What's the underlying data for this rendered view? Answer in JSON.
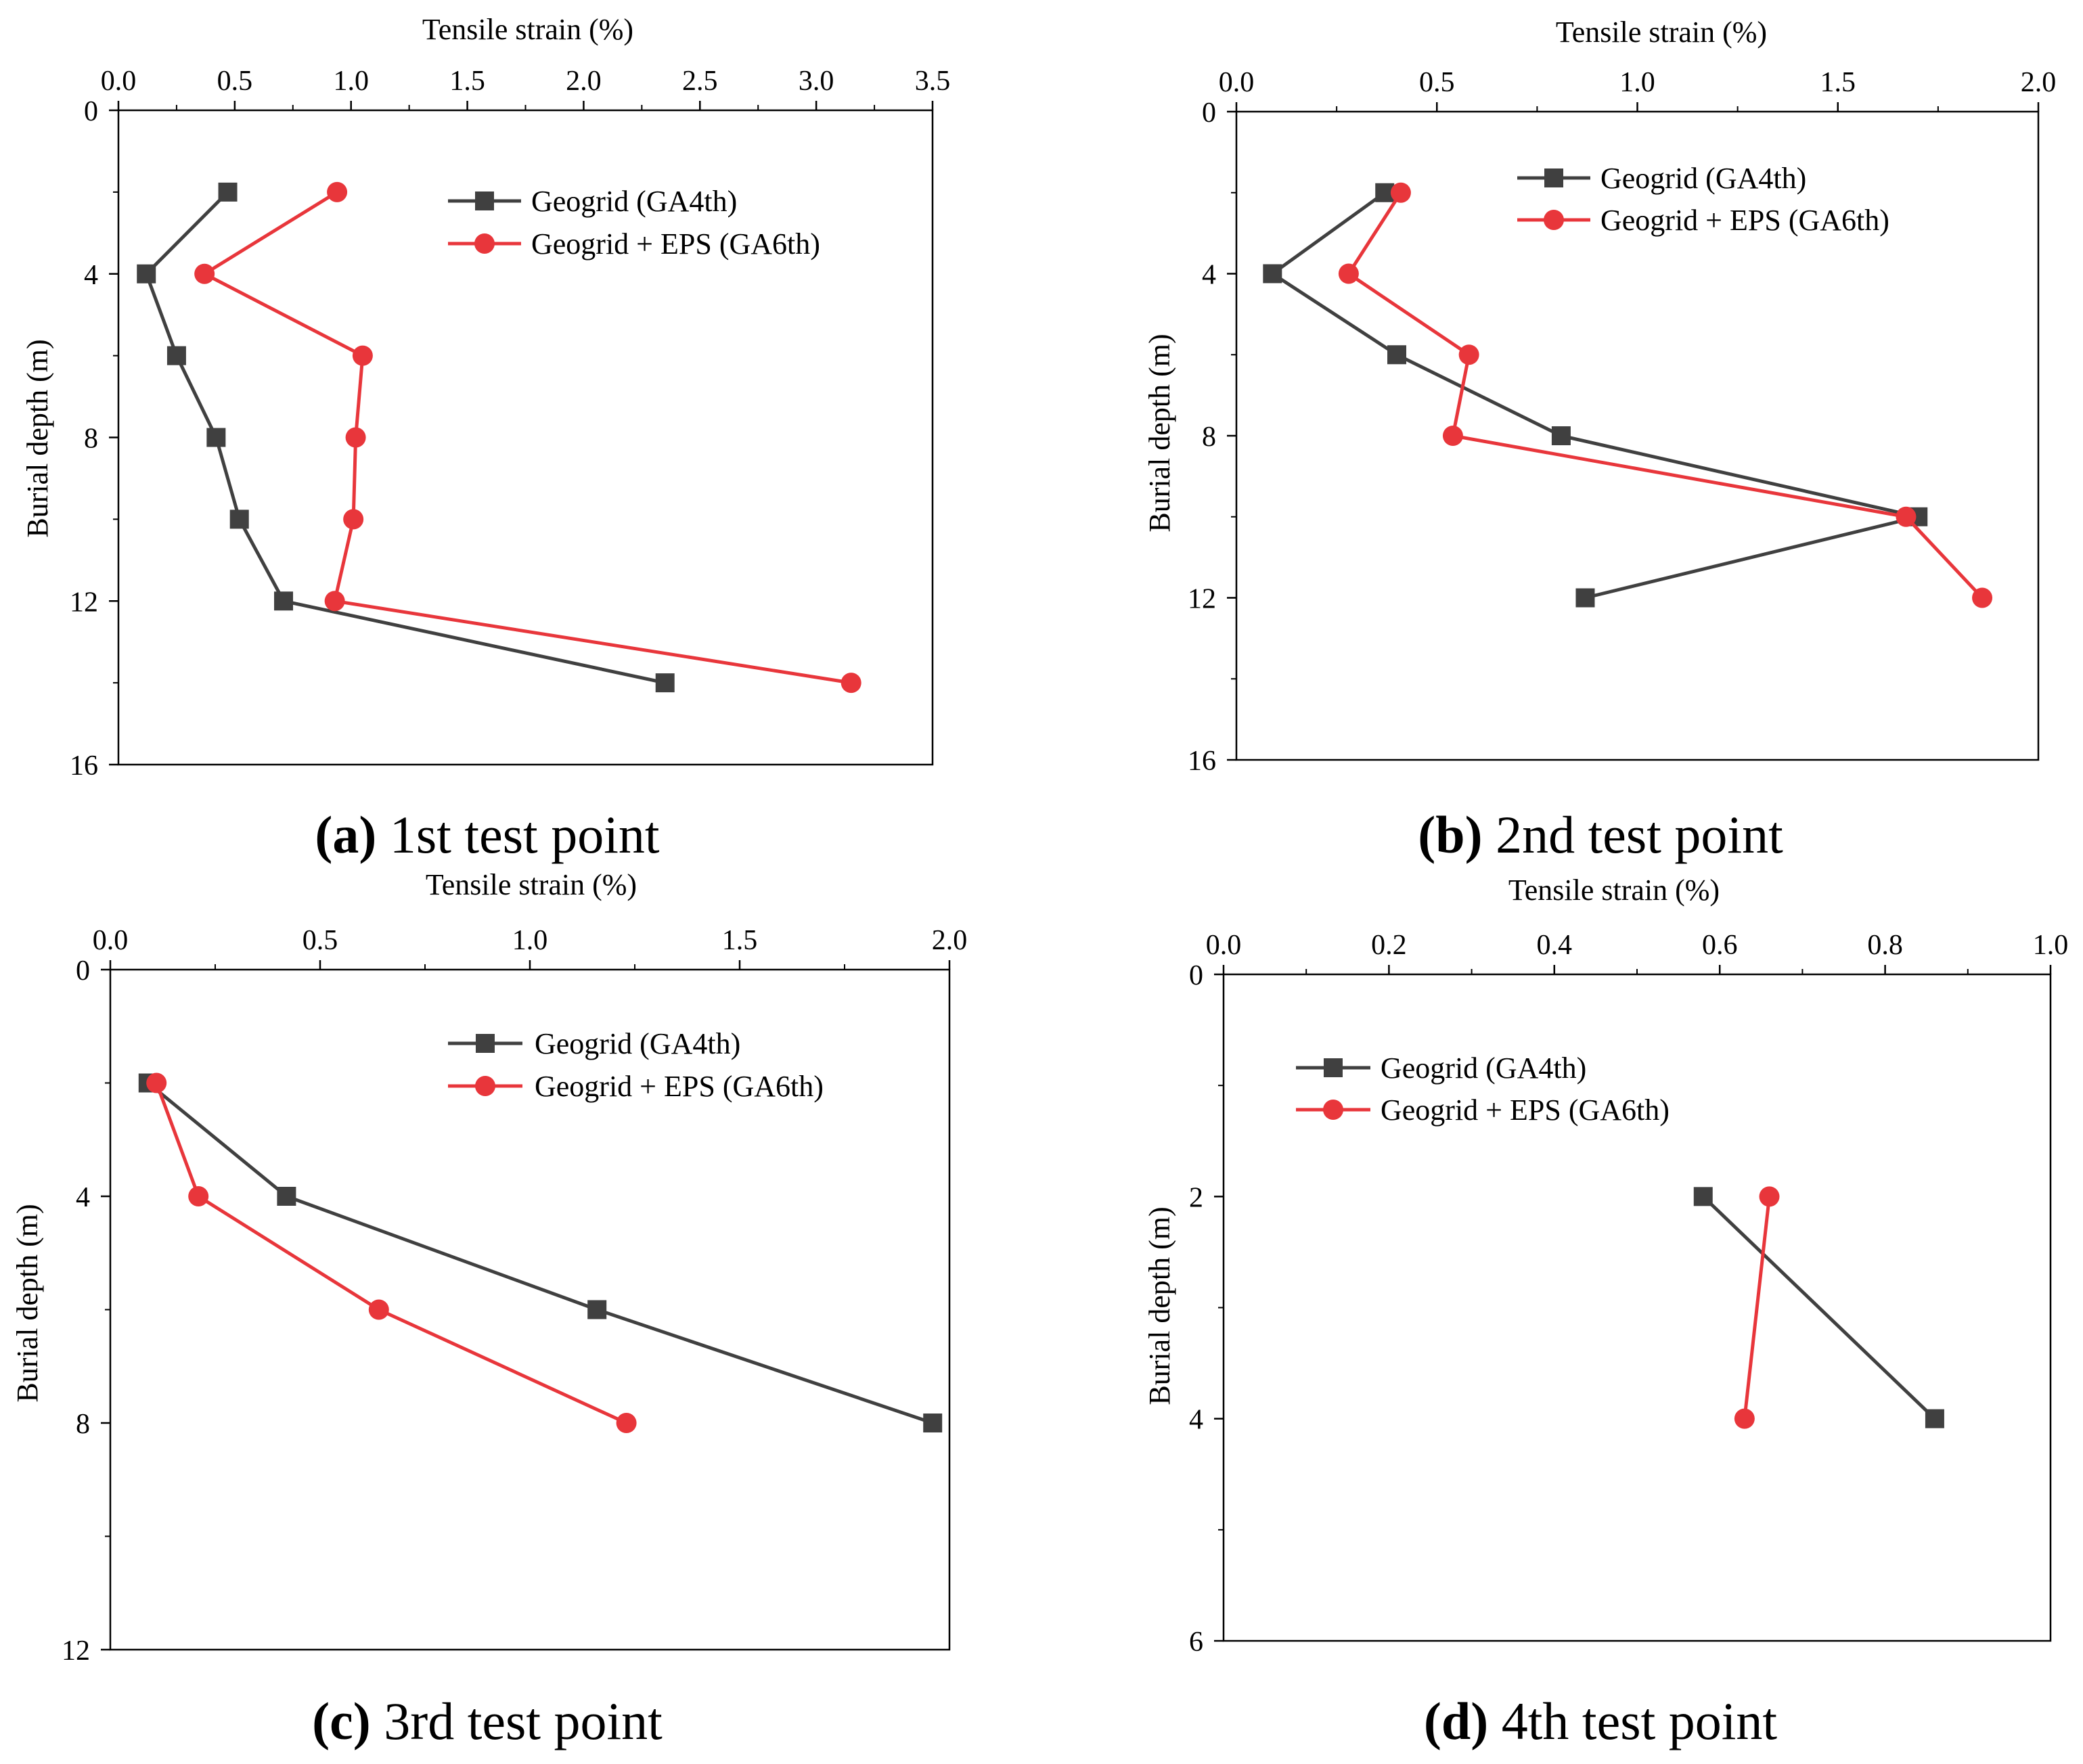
{
  "colors": {
    "series_1": "#404040",
    "series_2": "#e8363b",
    "axis": "#000000"
  },
  "chart_data": [
    {
      "type": "line",
      "caption_letter": "a",
      "caption_text": " 1st test point",
      "xlabel": "Tensile strain (%)",
      "ylabel": "Burial depth (m)",
      "x_position": "top",
      "y_inverted": true,
      "xlim": [
        0,
        3.5
      ],
      "ylim": [
        0,
        16
      ],
      "xticks": [
        0.0,
        0.5,
        1.0,
        1.5,
        2.0,
        2.5,
        3.0,
        3.5
      ],
      "xtick_labels": [
        "0.0",
        "0.5",
        "1.0",
        "1.5",
        "2.0",
        "2.5",
        "3.0",
        "3.5"
      ],
      "yticks": [
        0,
        4,
        8,
        12,
        16
      ],
      "ytick_labels": [
        "0",
        "4",
        "8",
        "12",
        "16"
      ],
      "legend_position": "top-right",
      "series": [
        {
          "name": "Geogrid (GA4th)",
          "marker": "square",
          "color": "#404040",
          "points": [
            [
              0.47,
              2
            ],
            [
              0.12,
              4
            ],
            [
              0.25,
              6
            ],
            [
              0.42,
              8
            ],
            [
              0.52,
              10
            ],
            [
              0.71,
              12
            ],
            [
              2.35,
              14
            ]
          ]
        },
        {
          "name": "Geogrid + EPS (GA6th)",
          "marker": "circle",
          "color": "#e8363b",
          "points": [
            [
              0.94,
              2
            ],
            [
              0.37,
              4
            ],
            [
              1.05,
              6
            ],
            [
              1.02,
              8
            ],
            [
              1.01,
              10
            ],
            [
              0.93,
              12
            ],
            [
              3.15,
              14
            ]
          ]
        }
      ]
    },
    {
      "type": "line",
      "caption_letter": "b",
      "caption_text": " 2nd test point",
      "xlabel": "Tensile strain (%)",
      "ylabel": "Burial depth (m)",
      "x_position": "top",
      "y_inverted": true,
      "xlim": [
        0,
        2.0
      ],
      "ylim": [
        0,
        16
      ],
      "xticks": [
        0.0,
        0.5,
        1.0,
        1.5,
        2.0
      ],
      "xtick_labels": [
        "0.0",
        "0.5",
        "1.0",
        "1.5",
        "2.0"
      ],
      "yticks": [
        0,
        4,
        8,
        12,
        16
      ],
      "ytick_labels": [
        "0",
        "4",
        "8",
        "12",
        "16"
      ],
      "legend_position": "top-right",
      "series": [
        {
          "name": "Geogrid (GA4th)",
          "marker": "square",
          "color": "#404040",
          "points": [
            [
              0.37,
              2
            ],
            [
              0.09,
              4
            ],
            [
              0.4,
              6
            ],
            [
              0.81,
              8
            ],
            [
              1.7,
              10
            ],
            [
              0.87,
              12
            ]
          ]
        },
        {
          "name": "Geogrid + EPS (GA6th)",
          "marker": "circle",
          "color": "#e8363b",
          "points": [
            [
              0.41,
              2
            ],
            [
              0.28,
              4
            ],
            [
              0.58,
              6
            ],
            [
              0.54,
              8
            ],
            [
              1.67,
              10
            ],
            [
              1.86,
              12
            ]
          ]
        }
      ]
    },
    {
      "type": "line",
      "caption_letter": "c",
      "caption_text": " 3rd test point",
      "xlabel": "Tensile strain (%)",
      "ylabel": "Burial depth (m)",
      "x_position": "top",
      "y_inverted": true,
      "xlim": [
        0,
        2.0
      ],
      "ylim": [
        0,
        12
      ],
      "xticks": [
        0.0,
        0.5,
        1.0,
        1.5,
        2.0
      ],
      "xtick_labels": [
        "0.0",
        "0.5",
        "1.0",
        "1.5",
        "2.0"
      ],
      "yticks": [
        0,
        4,
        8,
        12
      ],
      "ytick_labels": [
        "0",
        "4",
        "8",
        "12"
      ],
      "legend_position": "top-right",
      "series": [
        {
          "name": "Geogrid (GA4th)",
          "marker": "square",
          "color": "#404040",
          "points": [
            [
              0.09,
              2
            ],
            [
              0.42,
              4
            ],
            [
              1.16,
              6
            ],
            [
              1.96,
              8
            ]
          ]
        },
        {
          "name": "Geogrid + EPS (GA6th)",
          "marker": "circle",
          "color": "#e8363b",
          "points": [
            [
              0.11,
              2
            ],
            [
              0.21,
              4
            ],
            [
              0.64,
              6
            ],
            [
              1.23,
              8
            ]
          ]
        }
      ]
    },
    {
      "type": "line",
      "caption_letter": "d",
      "caption_text": " 4th test point",
      "xlabel": "Tensile strain (%)",
      "ylabel": "Burial depth (m)",
      "x_position": "top",
      "y_inverted": true,
      "xlim": [
        0,
        1.0
      ],
      "ylim": [
        0,
        6
      ],
      "xticks": [
        0.0,
        0.2,
        0.4,
        0.6,
        0.8,
        1.0
      ],
      "xtick_labels": [
        "0.0",
        "0.2",
        "0.4",
        "0.6",
        "0.8",
        "1.0"
      ],
      "yticks": [
        0,
        2,
        4,
        6
      ],
      "ytick_labels": [
        "0",
        "2",
        "4",
        "6"
      ],
      "legend_position": "top-left",
      "series": [
        {
          "name": "Geogrid (GA4th)",
          "marker": "square",
          "color": "#404040",
          "points": [
            [
              0.58,
              2
            ],
            [
              0.86,
              4
            ]
          ]
        },
        {
          "name": "Geogrid + EPS (GA6th)",
          "marker": "circle",
          "color": "#e8363b",
          "points": [
            [
              0.66,
              2
            ],
            [
              0.63,
              4
            ]
          ]
        }
      ]
    }
  ]
}
